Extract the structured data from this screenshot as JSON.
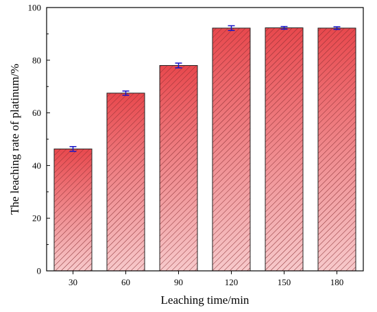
{
  "chart_data": {
    "type": "bar",
    "xlabel": "Leaching time/min",
    "ylabel": "The leaching rate of platinum/%",
    "categories": [
      "30",
      "60",
      "90",
      "120",
      "150",
      "180"
    ],
    "values": [
      46.3,
      67.5,
      78.0,
      92.2,
      92.3,
      92.2
    ],
    "errors": [
      0.9,
      0.8,
      0.9,
      0.9,
      0.5,
      0.5
    ],
    "ylim": [
      0,
      100
    ],
    "yticks": [
      0,
      20,
      40,
      60,
      80,
      100
    ],
    "ytick_labels": [
      "0",
      "20",
      "40",
      "60",
      "80",
      "100"
    ],
    "grid": false,
    "legend": "none",
    "bar_fill": "diagonal hatch with vertical red gradient",
    "colors": {
      "bar_top": "#e8484d",
      "bar_bottom": "#f7c9cb",
      "hatch": "#8a2f33",
      "bar_edge": "#222222",
      "error_bar": "#1414c8",
      "axis": "#000000"
    }
  }
}
